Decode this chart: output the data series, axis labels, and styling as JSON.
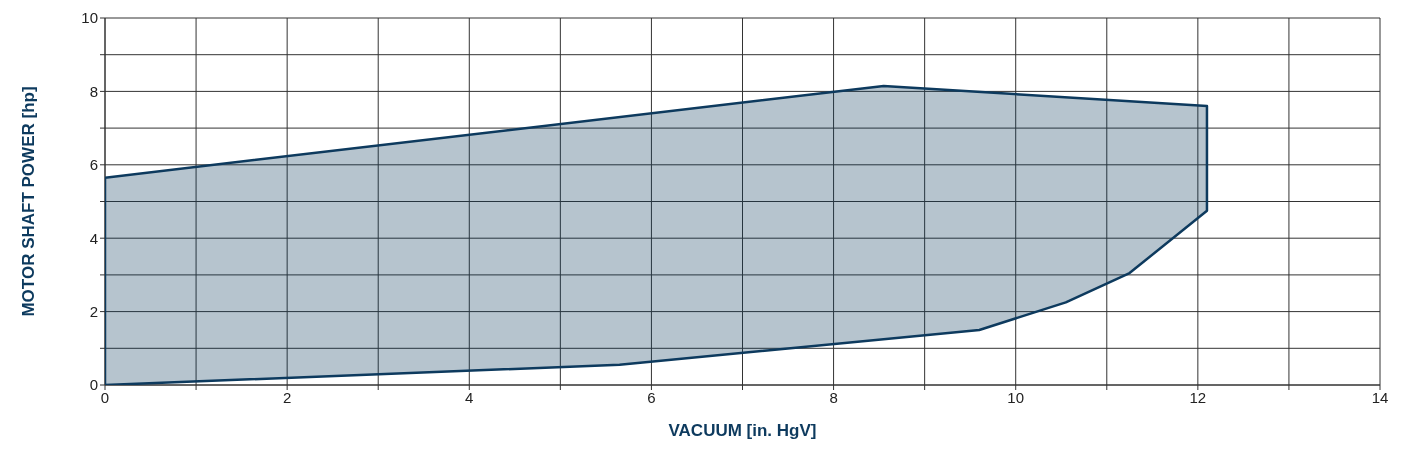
{
  "chart_data": {
    "type": "area",
    "xlabel": "VACUUM  [in. HgV]",
    "ylabel": "MOTOR SHAFT POWER  [hp]",
    "xlim": [
      0,
      14
    ],
    "xticks": [
      0,
      {
        "value": 1,
        "label": null
      },
      2,
      {
        "value": 3,
        "label": null
      },
      4,
      {
        "value": 5,
        "label": null
      },
      6,
      {
        "value": 7,
        "label": null
      },
      8,
      {
        "value": 9,
        "label": null
      },
      10,
      {
        "value": 11,
        "label": null
      },
      12,
      {
        "value": 13,
        "label": null
      },
      14
    ],
    "ylim": [
      0,
      10
    ],
    "yticks": [
      0,
      {
        "value": 1,
        "label": null
      },
      2,
      {
        "value": 3,
        "label": null
      },
      4,
      {
        "value": 5,
        "label": null
      },
      6,
      {
        "value": 7,
        "label": null
      },
      8,
      {
        "value": 9,
        "label": null
      },
      10
    ],
    "grid": true,
    "series": [
      {
        "color": "#0d3a5e",
        "x": [
          0,
          8.55,
          12.1,
          12.1,
          11.25,
          10.55,
          9.6,
          5.65,
          0,
          0
        ],
        "values": [
          5.65,
          8.15,
          7.6,
          4.75,
          3.05,
          2.25,
          1.5,
          0.55,
          0,
          5.65
        ]
      }
    ]
  }
}
